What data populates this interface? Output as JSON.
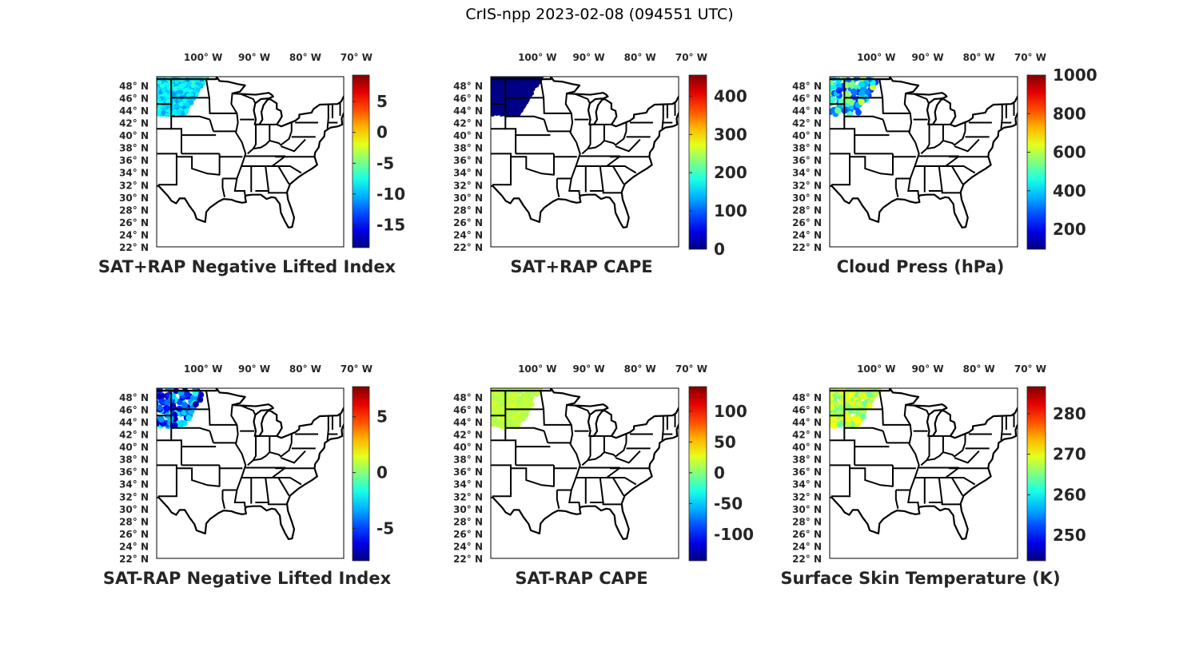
{
  "title": "CrIS-npp 2023-02-08 (094551 UTC)",
  "map": {
    "lon_labels": [
      "100",
      "90",
      "80",
      "70"
    ],
    "lon_suffix": "W",
    "lat_labels": [
      "48",
      "46",
      "44",
      "42",
      "40",
      "38",
      "36",
      "34",
      "32",
      "30",
      "28",
      "26",
      "24",
      "22"
    ],
    "lat_suffix": "N",
    "degree_symbol": "°",
    "lon_range": [
      -106.9,
      -70.3
    ],
    "lat_range": [
      22,
      49.4
    ]
  },
  "panels": [
    {
      "title": "SAT+RAP Negative Lifted Index",
      "cb_range": [
        -18.7,
        9.3
      ],
      "cb_ticks": [
        "5",
        "0",
        "-5",
        "-10",
        "-15"
      ],
      "swath_value_range": [
        -11,
        -7
      ],
      "swath": "dense"
    },
    {
      "title": "SAT+RAP CAPE",
      "cb_range": [
        0,
        455
      ],
      "cb_ticks": [
        "400",
        "300",
        "200",
        "100",
        "0"
      ],
      "swath_value_range": [
        0,
        5
      ],
      "swath": "dense"
    },
    {
      "title": "Cloud Press (hPa)",
      "cb_range": [
        97,
        1000
      ],
      "cb_ticks": [
        "1000",
        "800",
        "600",
        "400",
        "200"
      ],
      "swath_value_range": [
        250,
        620
      ],
      "swath": "sparse"
    },
    {
      "title": "SAT-RAP Negative Lifted Index",
      "cb_range": [
        -7.9,
        7.7
      ],
      "cb_ticks": [
        "5",
        "0",
        "-5"
      ],
      "swath_value_range": [
        -7.5,
        -1.5
      ],
      "swath": "sparse"
    },
    {
      "title": "SAT-RAP CAPE",
      "cb_range": [
        -143,
        140
      ],
      "cb_ticks": [
        "100",
        "50",
        "0",
        "-50",
        "-100"
      ],
      "swath_value_range": [
        10,
        22
      ],
      "swath": "medium"
    },
    {
      "title": "Surface Skin Temperature (K)",
      "cb_range": [
        243.7,
        286.7
      ],
      "cb_ticks": [
        "280",
        "270",
        "260",
        "250"
      ],
      "swath_value_range": [
        264,
        271
      ],
      "swath": "medium"
    }
  ]
}
